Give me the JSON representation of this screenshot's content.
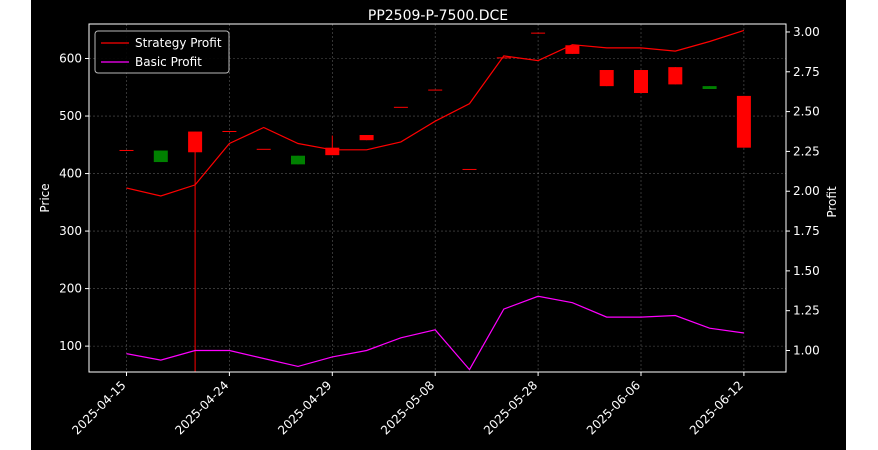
{
  "chart_data": {
    "type": "line",
    "title": "PP2509-P-7500.DCE",
    "ylabel": "Price",
    "y2label": "Profit",
    "x_ticks": [
      "2025-04-15",
      "2025-04-24",
      "2025-04-29",
      "2025-05-08",
      "2025-05-28",
      "2025-06-06",
      "2025-06-12"
    ],
    "x_tick_index": [
      0,
      3,
      6,
      9,
      12,
      15,
      18
    ],
    "ylim": [
      55,
      660
    ],
    "y_ticks": [
      100,
      200,
      300,
      400,
      500,
      600
    ],
    "y2lim": [
      0.865,
      3.05
    ],
    "y2_ticks": [
      "1.00",
      "1.25",
      "1.50",
      "1.75",
      "2.00",
      "2.25",
      "2.50",
      "2.75",
      "3.00"
    ],
    "grid": true,
    "legend_position": "upper-left",
    "candles": [
      {
        "i": 0,
        "open": 441,
        "close": 441,
        "high": 441,
        "low": 441
      },
      {
        "i": 1,
        "open": 440,
        "close": 420,
        "high": 440,
        "low": 420
      },
      {
        "i": 2,
        "open": 437,
        "close": 473,
        "high": 473,
        "low": 55
      },
      {
        "i": 3,
        "open": 474,
        "close": 474,
        "high": 474,
        "low": 474
      },
      {
        "i": 4,
        "open": 443,
        "close": 443,
        "high": 443,
        "low": 443
      },
      {
        "i": 5,
        "open": 431,
        "close": 416,
        "high": 431,
        "low": 416
      },
      {
        "i": 6,
        "open": 432,
        "close": 445,
        "high": 466,
        "low": 432
      },
      {
        "i": 7,
        "open": 458,
        "close": 467,
        "high": 467,
        "low": 458
      },
      {
        "i": 8,
        "open": 516,
        "close": 516,
        "high": 516,
        "low": 516
      },
      {
        "i": 9,
        "open": 546,
        "close": 546,
        "high": 546,
        "low": 546
      },
      {
        "i": 10,
        "open": 408,
        "close": 408,
        "high": 408,
        "low": 408
      },
      {
        "i": 11,
        "open": 602,
        "close": 602,
        "high": 602,
        "low": 602
      },
      {
        "i": 12,
        "open": 645,
        "close": 645,
        "high": 645,
        "low": 645
      },
      {
        "i": 13,
        "open": 608,
        "close": 623,
        "high": 623,
        "low": 608
      },
      {
        "i": 14,
        "open": 552,
        "close": 580,
        "high": 580,
        "low": 552
      },
      {
        "i": 15,
        "open": 540,
        "close": 580,
        "high": 580,
        "low": 540
      },
      {
        "i": 16,
        "open": 555,
        "close": 585,
        "high": 585,
        "low": 555
      },
      {
        "i": 17,
        "open": 552,
        "close": 547,
        "high": 552,
        "low": 547
      },
      {
        "i": 18,
        "open": 445,
        "close": 535,
        "high": 535,
        "low": 445
      }
    ],
    "series": [
      {
        "name": "Strategy Profit",
        "axis": "right",
        "values": [
          2.02,
          1.97,
          2.04,
          2.3,
          2.4,
          2.3,
          2.26,
          2.26,
          2.31,
          2.44,
          2.55,
          2.85,
          2.82,
          2.92,
          2.9,
          2.9,
          2.88,
          2.94,
          3.01
        ]
      },
      {
        "name": "Basic Profit",
        "axis": "right",
        "values": [
          0.98,
          0.94,
          1.0,
          1.0,
          0.95,
          0.9,
          0.96,
          1.0,
          1.08,
          1.13,
          0.88,
          1.26,
          1.34,
          1.3,
          1.21,
          1.21,
          1.22,
          1.14,
          1.11
        ]
      }
    ],
    "colors": {
      "background": "#000000",
      "strategy": "#ff0000",
      "basic": "#ff00ff",
      "up": "#ff0000",
      "down": "#008000",
      "grid": "#b0b0b0",
      "text": "#ffffff"
    }
  }
}
